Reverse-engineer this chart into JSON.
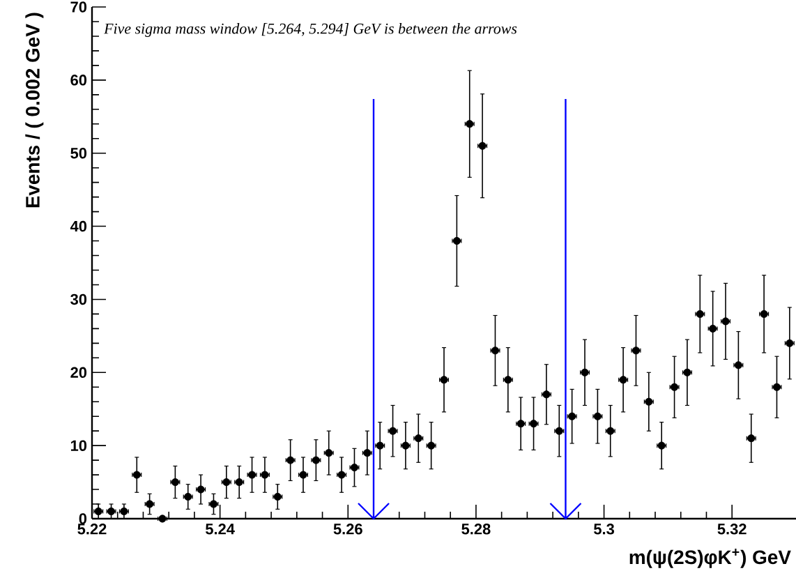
{
  "chart_data": {
    "type": "scatter",
    "xlabel": "m(ψ(2S)φK$^{+}$) GeV",
    "ylabel": "Events / ( 0.002 GeV )",
    "annotations": [
      "Five sigma mass window [5.264, 5.294] GeV  is between the arrows"
    ],
    "x": [
      5.221,
      5.223,
      5.225,
      5.227,
      5.229,
      5.231,
      5.233,
      5.235,
      5.237,
      5.239,
      5.241,
      5.243,
      5.245,
      5.247,
      5.249,
      5.251,
      5.253,
      5.255,
      5.257,
      5.259,
      5.261,
      5.263,
      5.265,
      5.267,
      5.269,
      5.271,
      5.273,
      5.275,
      5.277,
      5.279,
      5.281,
      5.283,
      5.285,
      5.287,
      5.289,
      5.291,
      5.293,
      5.295,
      5.297,
      5.299,
      5.301,
      5.303,
      5.305,
      5.307,
      5.309,
      5.311,
      5.313,
      5.315,
      5.317,
      5.319,
      5.321,
      5.323,
      5.325,
      5.327,
      5.329
    ],
    "values": [
      1,
      1,
      1,
      6,
      2,
      0,
      5,
      3,
      4,
      2,
      5,
      5,
      6,
      6,
      3,
      8,
      6,
      8,
      9,
      6,
      7,
      9,
      10,
      12,
      10,
      11,
      10,
      19,
      38,
      54,
      51,
      23,
      19,
      13,
      13,
      17,
      12,
      14,
      20,
      14,
      12,
      19,
      23,
      16,
      10,
      18,
      20,
      28,
      26,
      27,
      21,
      11,
      28,
      18,
      24
    ],
    "errors": [
      1,
      1,
      1,
      2.4,
      1.4,
      null,
      2.2,
      1.7,
      2,
      1.4,
      2.2,
      2.2,
      2.4,
      2.4,
      1.7,
      2.8,
      2.4,
      2.8,
      3,
      2.4,
      2.6,
      3,
      3.2,
      3.5,
      3.2,
      3.3,
      3.2,
      4.4,
      6.2,
      7.3,
      7.1,
      4.8,
      4.4,
      3.6,
      3.6,
      4.1,
      3.5,
      3.7,
      4.5,
      3.7,
      3.5,
      4.4,
      4.8,
      4,
      3.2,
      4.2,
      4.5,
      5.3,
      5.1,
      5.2,
      4.6,
      3.3,
      5.3,
      4.2,
      4.9
    ],
    "xerrors": [
      0.0007,
      0.0007,
      0.0007,
      0.0007,
      0.0007,
      0.0007,
      0.0007,
      0.0007,
      0.0007,
      0.0007,
      0.0007,
      0.0007,
      0.0007,
      0.0007,
      0.0007,
      0.0007,
      0.0007,
      0.0007,
      0.0007,
      0.0007,
      0.0007,
      0.0007,
      0.0007,
      0.0007,
      0.0007,
      0.0007,
      0.0007,
      0.0007,
      0.0007,
      0.0007,
      0.0007,
      0.0007,
      0.0007,
      0.0007,
      0.0007,
      0.0007,
      0.0007,
      0.0007,
      0.0007,
      0.0007,
      0.0007,
      0.0007,
      0.0007,
      0.0007,
      0.0007,
      0.0007,
      0.0007,
      0.0007,
      0.0007,
      0.0007,
      0.0007,
      0.0007,
      0.0007,
      0.0007,
      0.0007
    ],
    "color": "#000000",
    "marker": "circle",
    "xlim": [
      5.22,
      5.33
    ],
    "ylim": [
      0,
      70
    ],
    "xticks": [
      5.22,
      5.24,
      5.26,
      5.28,
      5.3,
      5.32
    ],
    "yticks": [
      0,
      10,
      20,
      30,
      40,
      50,
      60,
      70
    ],
    "ref_lines": [
      {
        "axis": "x",
        "value": 5.264,
        "color": "#0000ff"
      },
      {
        "axis": "x",
        "value": 5.294,
        "color": "#0000ff"
      }
    ]
  }
}
